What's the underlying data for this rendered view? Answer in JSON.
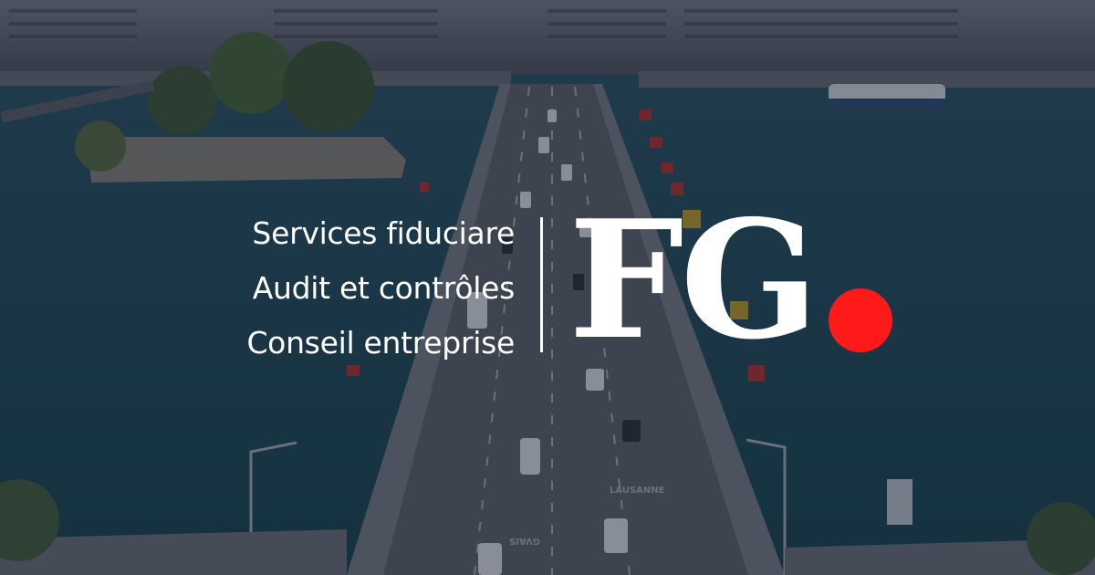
{
  "services": [
    "Services fiduciare",
    "Audit et contrôles",
    "Conseil entreprise"
  ],
  "logo": {
    "text": "FG",
    "dot_color": "#ff1a1a"
  },
  "road_markings": [
    "LAUSANNE",
    "GVAIS"
  ],
  "colors": {
    "water": "#1f4a5a",
    "overlay": "#141c2e",
    "text": "#ffffff"
  }
}
